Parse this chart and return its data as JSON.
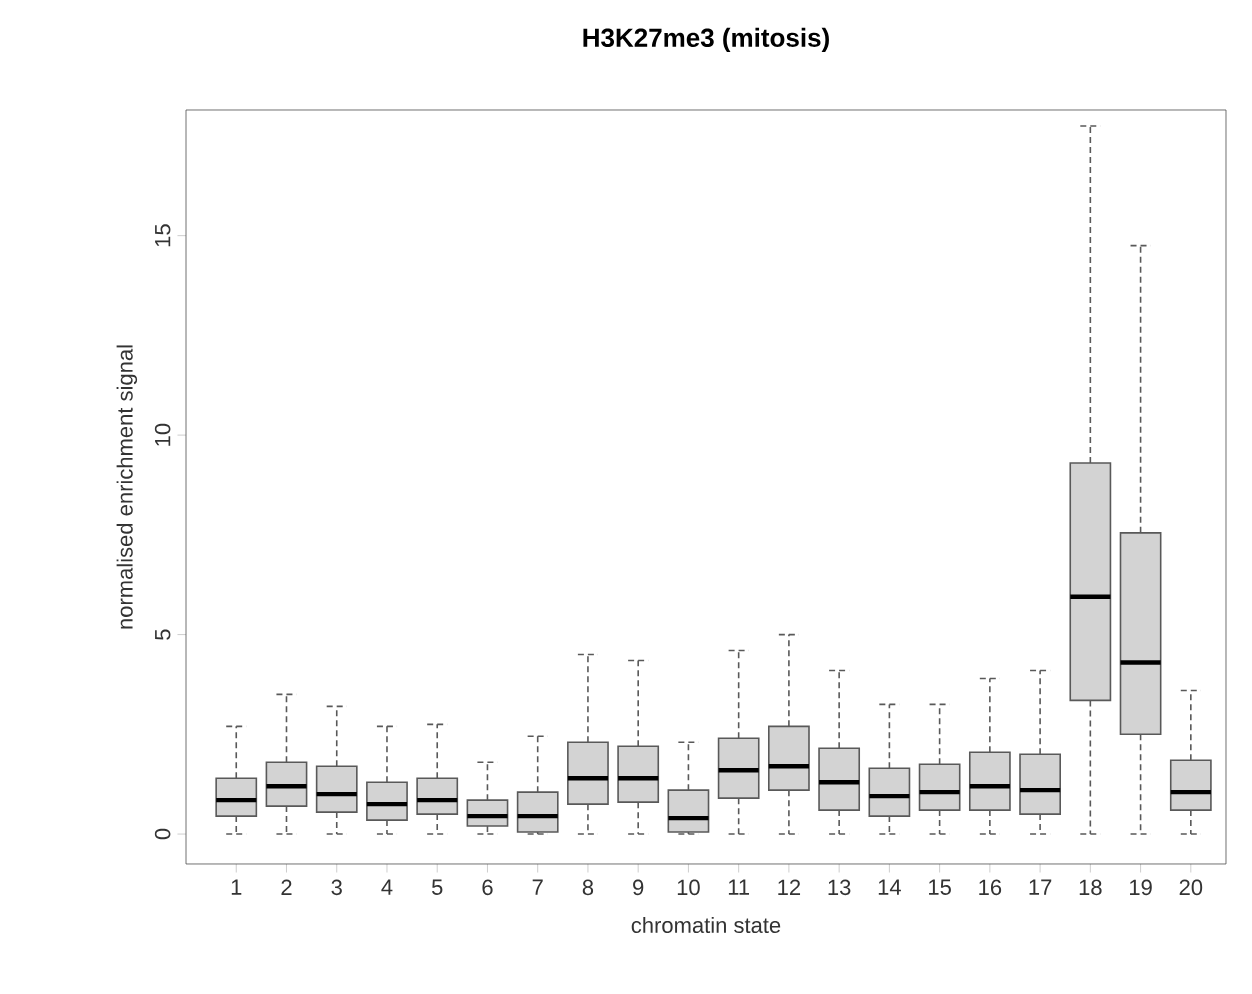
{
  "chart_data": {
    "type": "box",
    "title": "H3K27me3 (mitosis)",
    "xlabel": "chromatin state",
    "ylabel": "normalised enrichment signal",
    "categories": [
      "1",
      "2",
      "3",
      "4",
      "5",
      "6",
      "7",
      "8",
      "9",
      "10",
      "11",
      "12",
      "13",
      "14",
      "15",
      "16",
      "17",
      "18",
      "19",
      "20"
    ],
    "color": "#d3d3d3",
    "boxes": [
      {
        "low": 0,
        "q1": 0.45,
        "median": 0.85,
        "q3": 1.4,
        "high": 2.7
      },
      {
        "low": 0,
        "q1": 0.7,
        "median": 1.2,
        "q3": 1.8,
        "high": 3.5
      },
      {
        "low": 0,
        "q1": 0.55,
        "median": 1.0,
        "q3": 1.7,
        "high": 3.2
      },
      {
        "low": 0,
        "q1": 0.35,
        "median": 0.75,
        "q3": 1.3,
        "high": 2.7
      },
      {
        "low": 0,
        "q1": 0.5,
        "median": 0.85,
        "q3": 1.4,
        "high": 2.75
      },
      {
        "low": 0,
        "q1": 0.2,
        "median": 0.45,
        "q3": 0.85,
        "high": 1.8
      },
      {
        "low": 0,
        "q1": 0.05,
        "median": 0.45,
        "q3": 1.05,
        "high": 2.45
      },
      {
        "low": 0,
        "q1": 0.75,
        "median": 1.4,
        "q3": 2.3,
        "high": 4.5
      },
      {
        "low": 0,
        "q1": 0.8,
        "median": 1.4,
        "q3": 2.2,
        "high": 4.35
      },
      {
        "low": 0,
        "q1": 0.05,
        "median": 0.4,
        "q3": 1.1,
        "high": 2.3
      },
      {
        "low": 0,
        "q1": 0.9,
        "median": 1.6,
        "q3": 2.4,
        "high": 4.6
      },
      {
        "low": 0,
        "q1": 1.1,
        "median": 1.7,
        "q3": 2.7,
        "high": 5.0
      },
      {
        "low": 0,
        "q1": 0.6,
        "median": 1.3,
        "q3": 2.15,
        "high": 4.1
      },
      {
        "low": 0,
        "q1": 0.45,
        "median": 0.95,
        "q3": 1.65,
        "high": 3.25
      },
      {
        "low": 0,
        "q1": 0.6,
        "median": 1.05,
        "q3": 1.75,
        "high": 3.25
      },
      {
        "low": 0,
        "q1": 0.6,
        "median": 1.2,
        "q3": 2.05,
        "high": 3.9
      },
      {
        "low": 0,
        "q1": 0.5,
        "median": 1.1,
        "q3": 2.0,
        "high": 4.1
      },
      {
        "low": 0,
        "q1": 3.35,
        "median": 5.95,
        "q3": 9.3,
        "high": 17.75
      },
      {
        "low": 0,
        "q1": 2.5,
        "median": 4.3,
        "q3": 7.55,
        "high": 14.75
      },
      {
        "low": 0,
        "q1": 0.6,
        "median": 1.05,
        "q3": 1.85,
        "high": 3.6
      }
    ],
    "ylim": [
      -0.75,
      18.15
    ],
    "yticks": [
      0,
      5,
      10,
      15
    ]
  }
}
